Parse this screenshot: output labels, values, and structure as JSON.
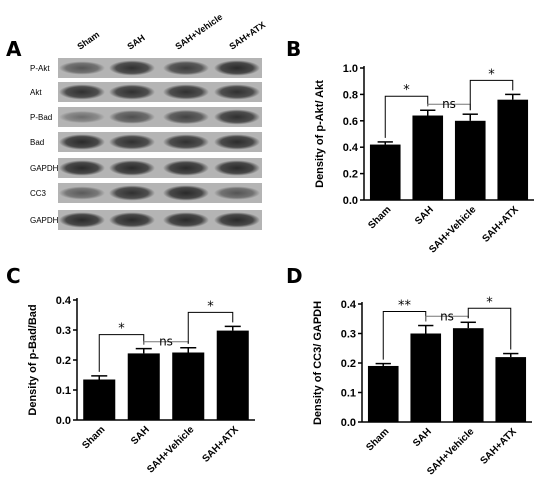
{
  "panel_letters": [
    "A",
    "B",
    "C",
    "D"
  ],
  "blot": {
    "lanes": [
      "Sham",
      "SAH",
      "SAH+Vehicle",
      "SAH+ATX"
    ],
    "rows": [
      "P-Akt",
      "Akt",
      "P-Bad",
      "Bad",
      "GAPDH",
      "CC3",
      "GAPDH"
    ],
    "band_intensity": [
      [
        0.55,
        0.85,
        0.75,
        0.9
      ],
      [
        0.85,
        0.85,
        0.85,
        0.85
      ],
      [
        0.35,
        0.6,
        0.7,
        0.85
      ],
      [
        0.9,
        0.85,
        0.85,
        0.88
      ],
      [
        0.9,
        0.9,
        0.9,
        0.9
      ],
      [
        0.5,
        0.85,
        0.9,
        0.55
      ],
      [
        0.9,
        0.9,
        0.9,
        0.9
      ]
    ]
  },
  "chart_data": [
    {
      "panel": "B",
      "type": "bar",
      "categories": [
        "Sham",
        "SAH",
        "SAH+Vehicle",
        "SAH+ATX"
      ],
      "values": [
        0.42,
        0.64,
        0.6,
        0.76
      ],
      "errors": [
        0.02,
        0.04,
        0.05,
        0.04
      ],
      "ylabel": "Density of p-Akt/ Akt",
      "ylim": [
        0,
        1.0
      ],
      "yticks": [
        "0.0",
        "0.2",
        "0.4",
        "0.6",
        "0.8",
        "1.0"
      ],
      "bar_color": "#000000",
      "annotations": [
        {
          "from": 0,
          "to": 1,
          "label": "*"
        },
        {
          "from": 1,
          "to": 2,
          "label": "ns"
        },
        {
          "from": 2,
          "to": 3,
          "label": "*"
        }
      ]
    },
    {
      "panel": "C",
      "type": "bar",
      "categories": [
        "Sham",
        "SAH",
        "SAH+Vehicle",
        "SAH+ATX"
      ],
      "values": [
        0.135,
        0.222,
        0.225,
        0.298
      ],
      "errors": [
        0.012,
        0.016,
        0.016,
        0.014
      ],
      "ylabel": "Density of p-Bad/Bad",
      "ylim": [
        0,
        0.4
      ],
      "yticks": [
        "0.0",
        "0.1",
        "0.2",
        "0.3",
        "0.4"
      ],
      "bar_color": "#000000",
      "annotations": [
        {
          "from": 0,
          "to": 1,
          "label": "*"
        },
        {
          "from": 1,
          "to": 2,
          "label": "ns"
        },
        {
          "from": 2,
          "to": 3,
          "label": "*"
        }
      ]
    },
    {
      "panel": "D",
      "type": "bar",
      "categories": [
        "Sham",
        "SAH",
        "SAH+Vehicle",
        "SAH+ATX"
      ],
      "values": [
        0.19,
        0.3,
        0.318,
        0.22
      ],
      "errors": [
        0.008,
        0.027,
        0.02,
        0.012
      ],
      "ylabel": "Density of CC3/ GAPDH",
      "ylim": [
        0,
        0.4
      ],
      "yticks": [
        "0.0",
        "0.1",
        "0.2",
        "0.3",
        "0.4"
      ],
      "bar_color": "#000000",
      "annotations": [
        {
          "from": 0,
          "to": 1,
          "label": "**"
        },
        {
          "from": 1,
          "to": 2,
          "label": "ns"
        },
        {
          "from": 2,
          "to": 3,
          "label": "*"
        }
      ]
    }
  ]
}
